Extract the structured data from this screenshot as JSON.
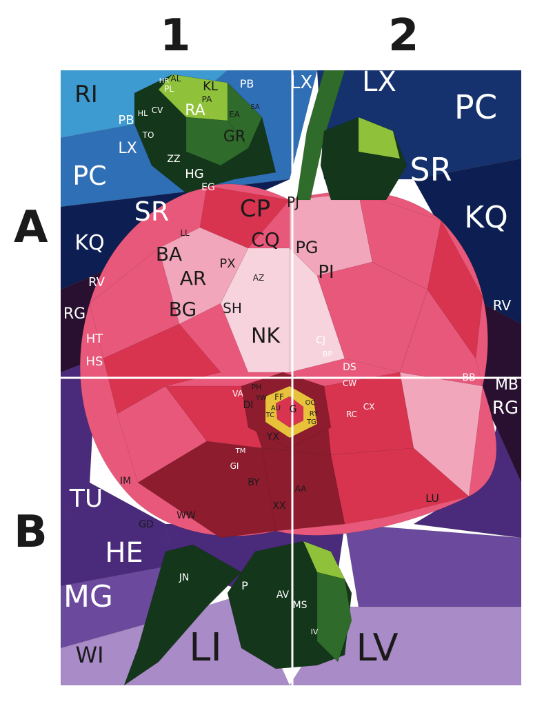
{
  "columns": [
    "1",
    "2"
  ],
  "rows": [
    "A",
    "B"
  ],
  "palette": {
    "sky_top": "#2f6fb5",
    "sky_light": "#3d9bd1",
    "navy": "#16326e",
    "deep_navy": "#0d1f52",
    "purple": "#4a2a7a",
    "violet": "#6b4a9e",
    "lilac": "#a98bc7",
    "dark_plum": "#2a1030",
    "pink": "#e8587a",
    "light_pink": "#f2a6bb",
    "pale_pink": "#f7d3de",
    "red": "#d8344f",
    "dark_red": "#8c1c2e",
    "leaf_dark": "#14361a",
    "leaf_mid": "#2f6b2a",
    "leaf_light": "#8fc23a",
    "yellow": "#e7c23a",
    "divider": "#ffffff"
  },
  "labels": [
    {
      "t": "RI"
    },
    {
      "t": "PB"
    },
    {
      "t": "LX"
    },
    {
      "t": "PC"
    },
    {
      "t": "SR"
    },
    {
      "t": "KQ"
    },
    {
      "t": "RV"
    },
    {
      "t": "RG"
    },
    {
      "t": "HT"
    },
    {
      "t": "HS"
    },
    {
      "t": "AL"
    },
    {
      "t": "HR"
    },
    {
      "t": "KL"
    },
    {
      "t": "PA"
    },
    {
      "t": "PL"
    },
    {
      "t": "RA"
    },
    {
      "t": "CV"
    },
    {
      "t": "EA"
    },
    {
      "t": "GR"
    },
    {
      "t": "SA"
    },
    {
      "t": "TO"
    },
    {
      "t": "HL"
    },
    {
      "t": "ZZ"
    },
    {
      "t": "HG"
    },
    {
      "t": "EG"
    },
    {
      "t": "LX"
    },
    {
      "t": "PB"
    },
    {
      "t": "LX"
    },
    {
      "t": "PC"
    },
    {
      "t": "SR"
    },
    {
      "t": "KQ"
    },
    {
      "t": "RV"
    },
    {
      "t": "CP"
    },
    {
      "t": "CQ"
    },
    {
      "t": "PJ"
    },
    {
      "t": "PX"
    },
    {
      "t": "AR"
    },
    {
      "t": "PG"
    },
    {
      "t": "PI"
    },
    {
      "t": "NK"
    },
    {
      "t": "SH"
    },
    {
      "t": "BA"
    },
    {
      "t": "BG"
    },
    {
      "t": "AZ"
    },
    {
      "t": "LL"
    },
    {
      "t": "CJ"
    },
    {
      "t": "BP"
    },
    {
      "t": "DS"
    },
    {
      "t": "BB"
    },
    {
      "t": "MB"
    },
    {
      "t": "RG"
    },
    {
      "t": "CW"
    },
    {
      "t": "VA"
    },
    {
      "t": "DI"
    },
    {
      "t": "FF"
    },
    {
      "t": "OC"
    },
    {
      "t": "RY"
    },
    {
      "t": "TG"
    },
    {
      "t": "YX"
    },
    {
      "t": "AU"
    },
    {
      "t": "TC"
    },
    {
      "t": "RC"
    },
    {
      "t": "CX"
    },
    {
      "t": "GI"
    },
    {
      "t": "IM"
    },
    {
      "t": "TM"
    },
    {
      "t": "WW"
    },
    {
      "t": "GD"
    },
    {
      "t": "BY"
    },
    {
      "t": "XX"
    },
    {
      "t": "AA"
    },
    {
      "t": "LU"
    },
    {
      "t": "TU"
    },
    {
      "t": "HE"
    },
    {
      "t": "MG"
    },
    {
      "t": "WI"
    },
    {
      "t": "LI"
    },
    {
      "t": "LV"
    },
    {
      "t": "JN"
    },
    {
      "t": "P"
    },
    {
      "t": "AV"
    },
    {
      "t": "MS"
    },
    {
      "t": "IV"
    },
    {
      "t": "PH"
    },
    {
      "t": "YW"
    },
    {
      "t": "G"
    }
  ]
}
